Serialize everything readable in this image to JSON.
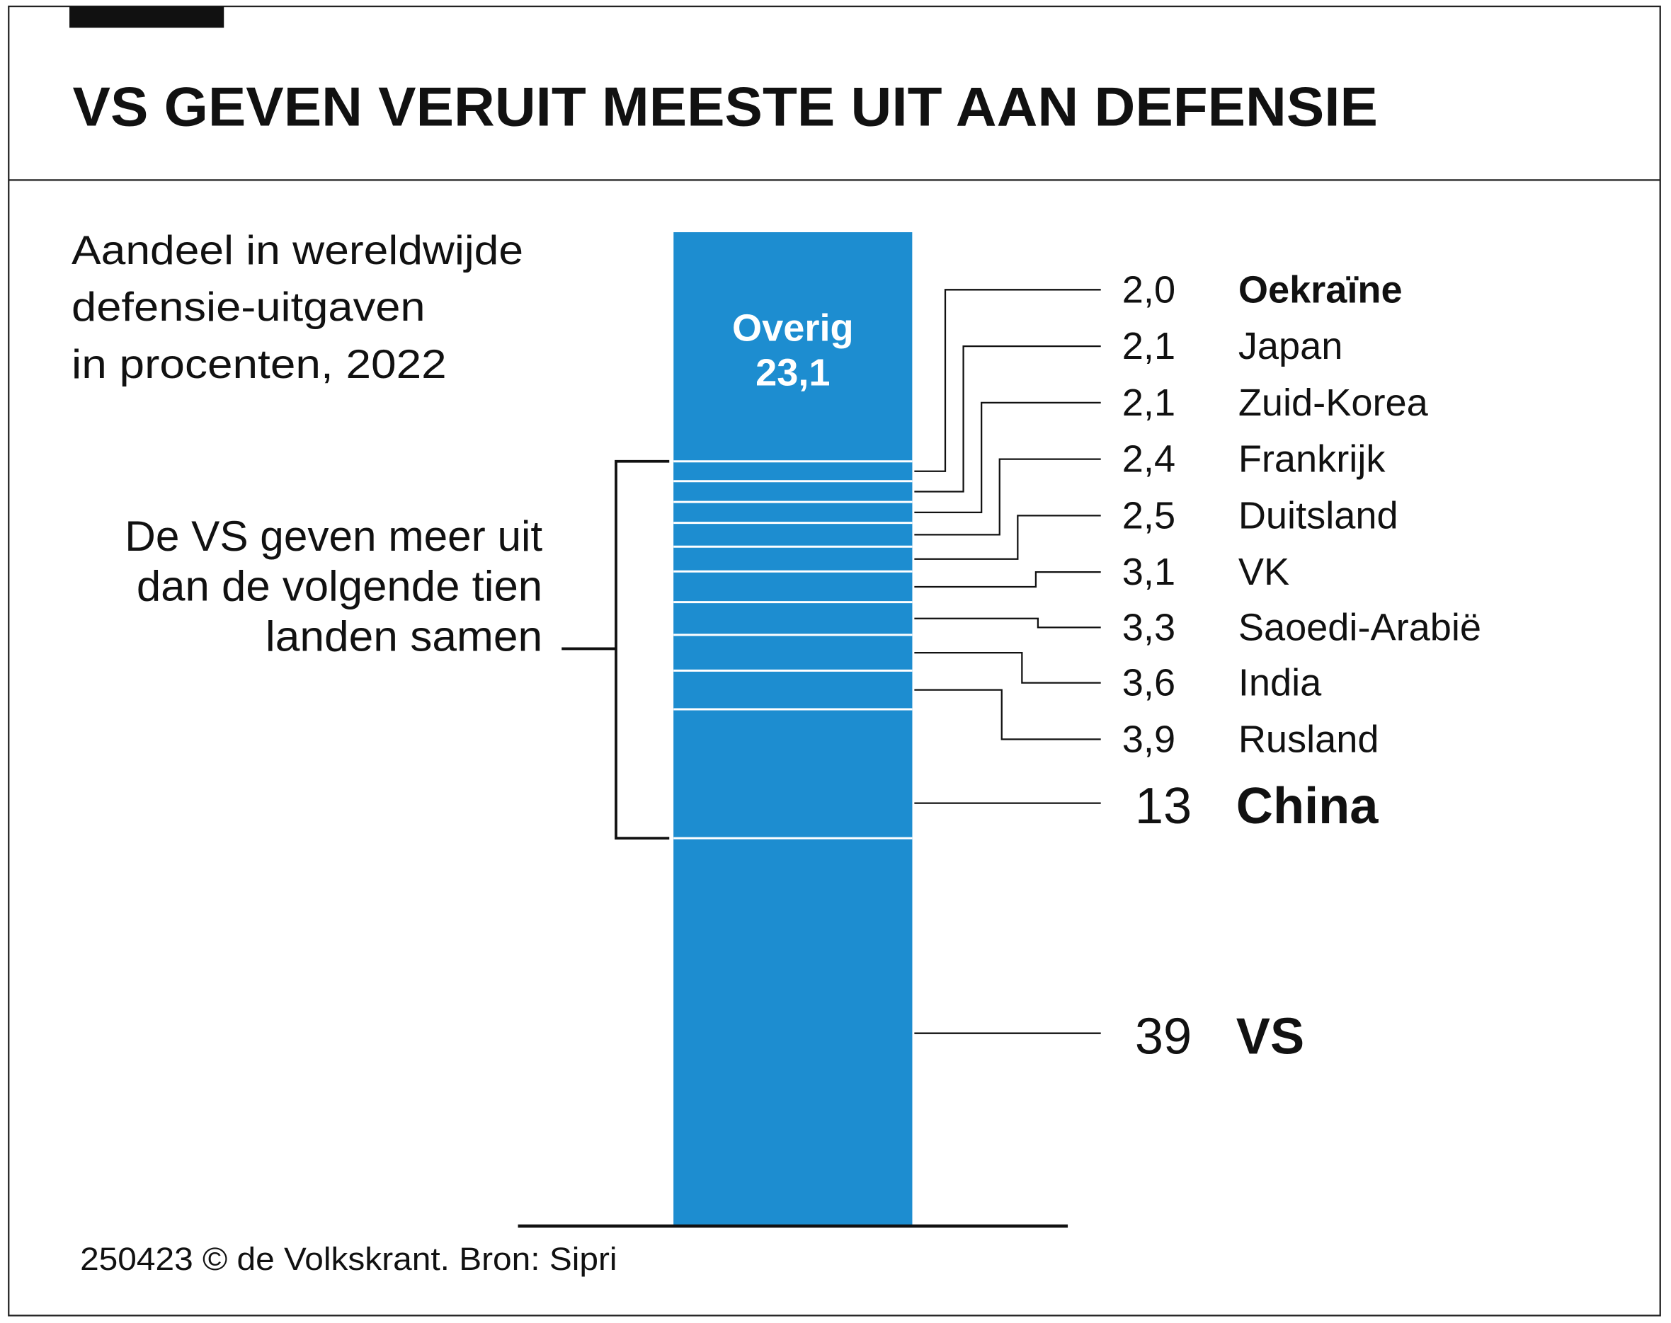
{
  "title": "VS GEVEN VERUIT MEESTE UIT AAN DEFENSIE",
  "subtitle": [
    "Aandeel in wereldwijde",
    "defensie-uitgaven",
    "in procenten, 2022"
  ],
  "annotation": [
    "De VS geven meer uit",
    "dan de volgende tien",
    "landen samen"
  ],
  "footer": "250423 © de Volkskrant. Bron: Sipri",
  "colors": {
    "bar": "#1d8dd0",
    "separator": "#ffffff",
    "text": "#111111"
  },
  "chart_data": {
    "type": "bar",
    "stacked": true,
    "unit": "procent",
    "top_segment": {
      "label": "Overig",
      "value_label": "23,1",
      "value": 23.1
    },
    "segments": [
      {
        "country": "Oekraïne",
        "value": 2.0,
        "label": "2,0",
        "bold": true
      },
      {
        "country": "Japan",
        "value": 2.1,
        "label": "2,1"
      },
      {
        "country": "Zuid-Korea",
        "value": 2.1,
        "label": "2,1"
      },
      {
        "country": "Frankrijk",
        "value": 2.4,
        "label": "2,4"
      },
      {
        "country": "Duitsland",
        "value": 2.5,
        "label": "2,5"
      },
      {
        "country": "VK",
        "value": 3.1,
        "label": "3,1"
      },
      {
        "country": "Saoedi-Arabië",
        "value": 3.3,
        "label": "3,3"
      },
      {
        "country": "India",
        "value": 3.6,
        "label": "3,6"
      },
      {
        "country": "Rusland",
        "value": 3.9,
        "label": "3,9"
      },
      {
        "country": "China",
        "value": 13,
        "label": "13",
        "large": true
      },
      {
        "country": "VS",
        "value": 39,
        "label": "39",
        "large": true,
        "bold": true
      }
    ]
  }
}
